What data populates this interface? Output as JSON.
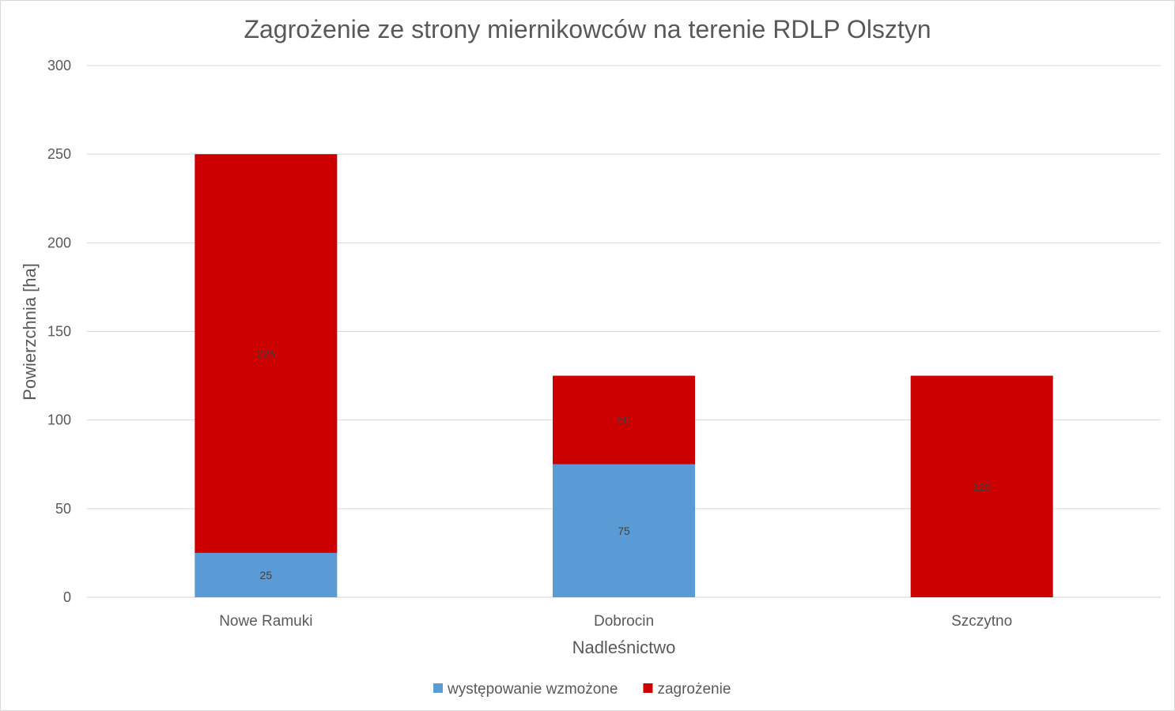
{
  "chart_data": {
    "type": "bar",
    "stacked": true,
    "title": "Zagrożenie ze strony miernikowców na terenie RDLP Olsztyn",
    "xlabel": "Nadleśnictwo",
    "ylabel": "Powierzchnia [ha]",
    "categories": [
      "Nowe Ramuki",
      "Dobrocin",
      "Szczytno"
    ],
    "ylim": [
      0,
      300
    ],
    "yticks": [
      0,
      50,
      100,
      150,
      200,
      250,
      300
    ],
    "grid": true,
    "legend_position": "bottom",
    "series": [
      {
        "name": "występowanie wzmożone",
        "color": "#5b9bd5",
        "values": [
          25,
          75,
          0
        ]
      },
      {
        "name": "zagrożenie",
        "color": "#cc0000",
        "values": [
          225,
          50,
          125
        ]
      }
    ]
  }
}
